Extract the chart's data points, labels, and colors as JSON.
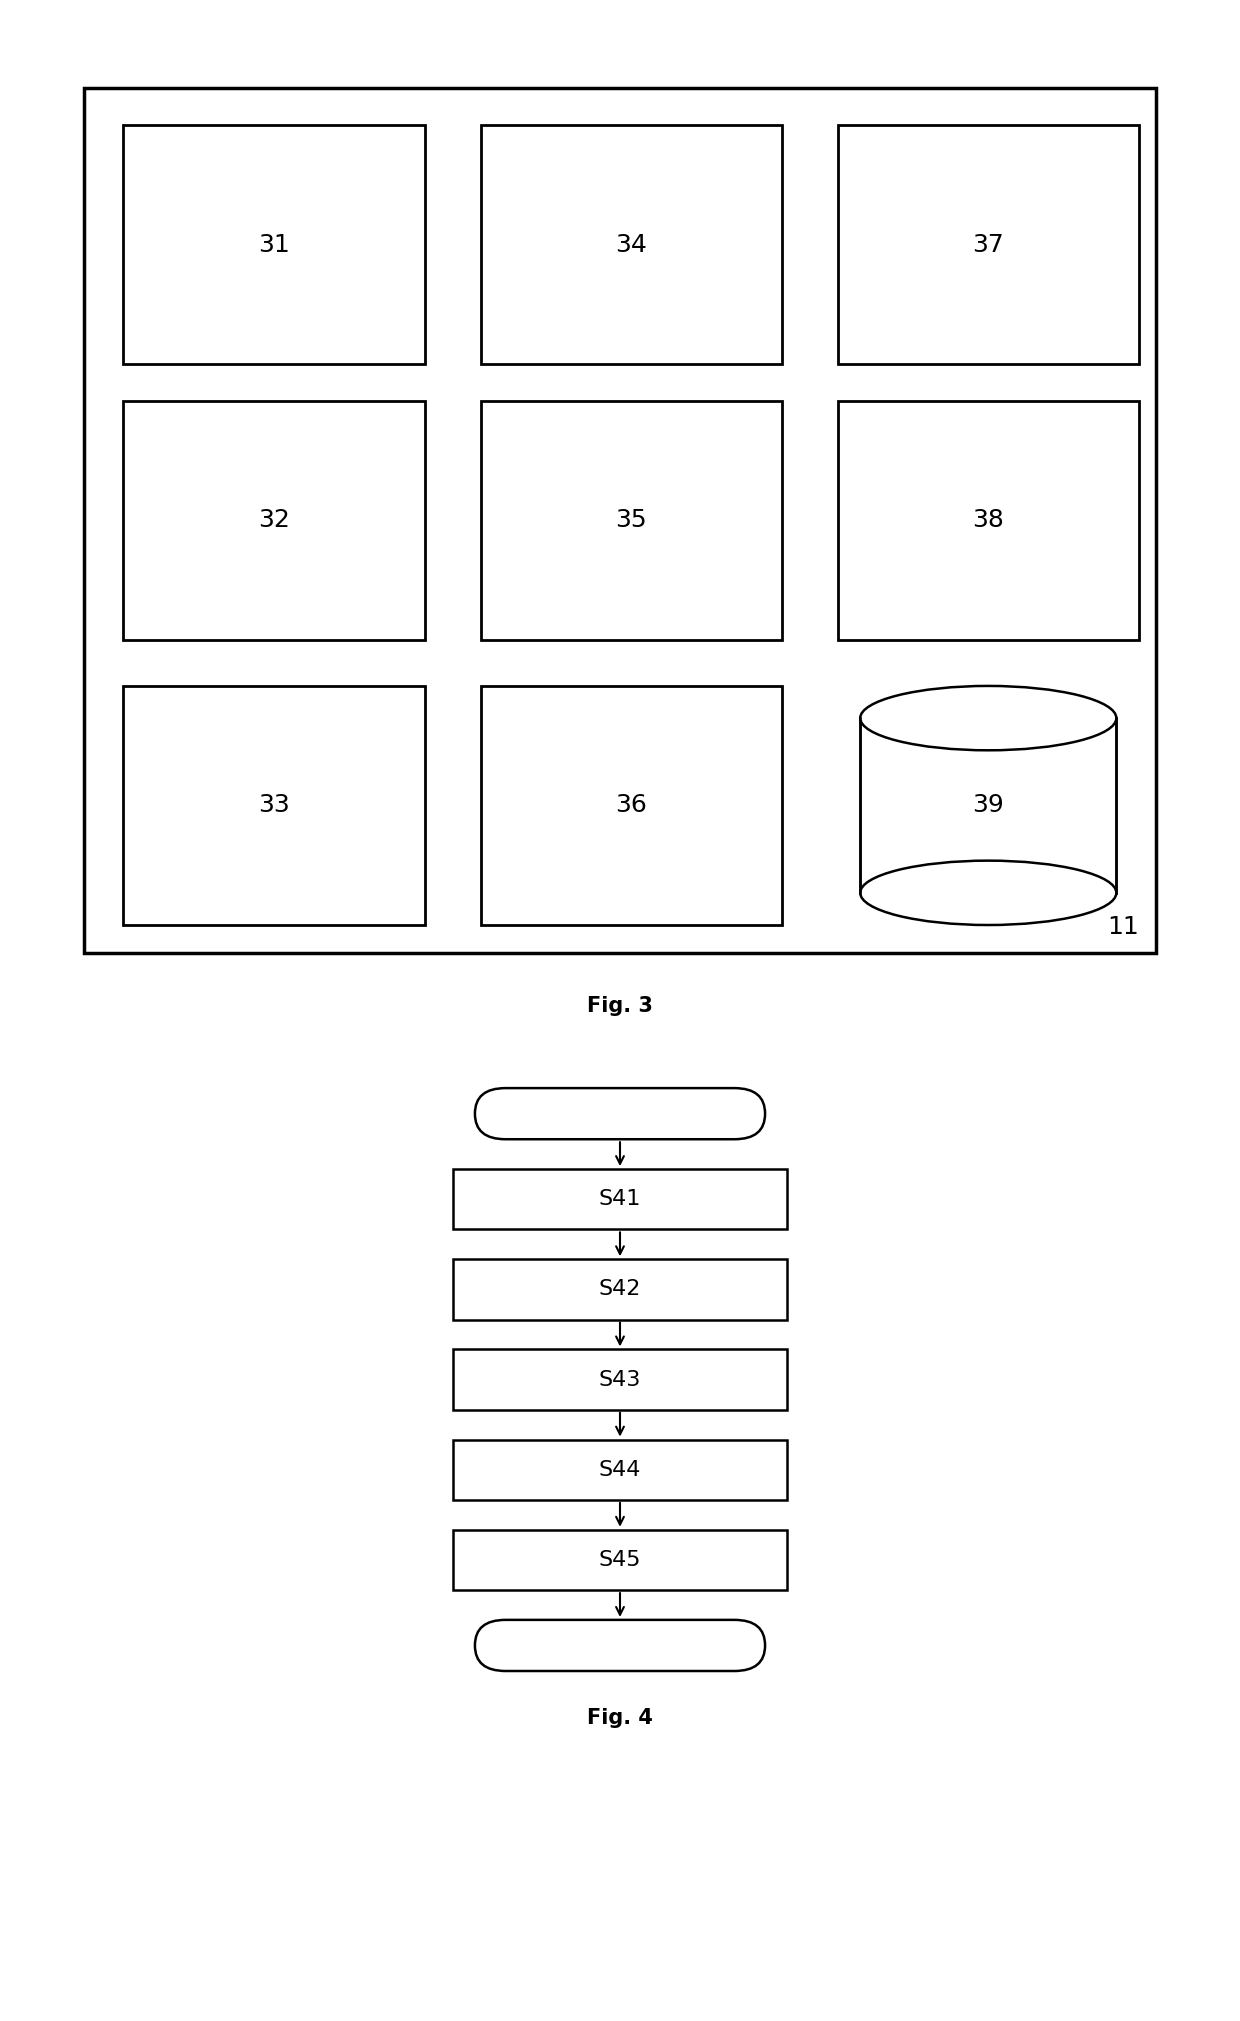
{
  "fig3": {
    "title": "Fig. 3",
    "label_11": {
      "text": "11"
    },
    "boxes": [
      {
        "label": "31",
        "col": 0,
        "row": 0
      },
      {
        "label": "34",
        "col": 1,
        "row": 0
      },
      {
        "label": "37",
        "col": 2,
        "row": 0
      },
      {
        "label": "32",
        "col": 0,
        "row": 1
      },
      {
        "label": "35",
        "col": 1,
        "row": 1
      },
      {
        "label": "38",
        "col": 2,
        "row": 1
      },
      {
        "label": "33",
        "col": 0,
        "row": 2
      },
      {
        "label": "36",
        "col": 1,
        "row": 2
      }
    ],
    "cylinder": {
      "label": "39",
      "col": 2,
      "row": 2
    }
  },
  "fig4": {
    "title": "Fig. 4",
    "steps": [
      "S41",
      "S42",
      "S43",
      "S44",
      "S45"
    ]
  },
  "font_size_label": 18,
  "font_size_title": 15,
  "font_size_step": 16,
  "bg_color": "#ffffff",
  "text_color": "#000000"
}
